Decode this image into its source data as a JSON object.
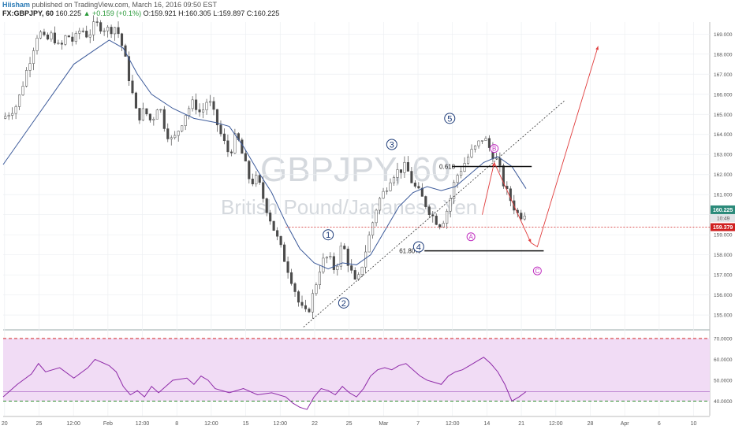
{
  "header": {
    "author": "Hiisham",
    "published": "published on TradingView.com, March 16, 2016 09:50 EST",
    "symbol": "FX:GBPJPY, 60",
    "last": "160.225",
    "change": "▲ +0.159 (+0.1%)",
    "open": "O:159.921",
    "high": "H:160.305",
    "low": "L:159.897",
    "close": "C:160.225"
  },
  "watermark": {
    "symbol": "GBPJPY, 60",
    "name": "British Pound/Japanese Yen"
  },
  "colors": {
    "candle": "#4a4a4a",
    "ma": "#3c5a9a",
    "projection": "#e03c3c",
    "trendline": "#333333",
    "wave": "#1f3d7a",
    "abc": "#c030c0",
    "rsi_line": "#8e2aa8",
    "rsi_band": "#f1dcf5",
    "rsi_upper": "#d02020",
    "rsi_lower": "#2a8a2a",
    "price_tag": "#2b8a7a",
    "level_tag": "#d02020"
  },
  "chart_data": {
    "type": "candlestick",
    "y_axis": {
      "ticks": [
        "169.000",
        "168.000",
        "167.000",
        "166.000",
        "165.000",
        "164.000",
        "163.000",
        "162.000",
        "161.000",
        "160.000",
        "159.000",
        "158.000",
        "157.000",
        "156.000",
        "155.000"
      ],
      "range": [
        154.3,
        169.6
      ]
    },
    "x_axis": {
      "ticks": [
        "20",
        "25",
        "12:00",
        "Feb",
        "12:00",
        "8",
        "12:00",
        "15",
        "12:00",
        "22",
        "25",
        "Mar",
        "7",
        "12:00",
        "14",
        "21",
        "12:00",
        "28",
        "Apr",
        "6",
        "10"
      ],
      "range": [
        0,
        100
      ]
    },
    "price_path": [
      [
        0,
        164.8
      ],
      [
        2,
        165.5
      ],
      [
        3,
        166.8
      ],
      [
        4,
        168.0
      ],
      [
        5,
        169.2
      ],
      [
        6,
        168.6
      ],
      [
        7,
        169.0
      ],
      [
        8,
        168.2
      ],
      [
        9,
        169.0
      ],
      [
        10,
        168.6
      ],
      [
        11,
        169.3
      ],
      [
        12,
        168.9
      ],
      [
        13,
        169.5
      ],
      [
        15,
        169.2
      ],
      [
        16,
        169.4
      ],
      [
        17,
        168.2
      ],
      [
        18,
        166.5
      ],
      [
        19,
        164.8
      ],
      [
        20,
        165.2
      ],
      [
        21,
        164.6
      ],
      [
        22,
        165.6
      ],
      [
        23,
        164.2
      ],
      [
        24,
        163.6
      ],
      [
        25,
        164.4
      ],
      [
        26,
        165.2
      ],
      [
        27,
        165.6
      ],
      [
        28,
        165.0
      ],
      [
        29,
        165.8
      ],
      [
        30,
        164.8
      ],
      [
        31,
        163.8
      ],
      [
        32,
        163.0
      ],
      [
        33,
        164.0
      ],
      [
        34,
        162.8
      ],
      [
        35,
        161.6
      ],
      [
        36,
        161.8
      ],
      [
        37,
        160.6
      ],
      [
        38,
        159.6
      ],
      [
        39,
        158.6
      ],
      [
        40,
        157.6
      ],
      [
        41,
        156.6
      ],
      [
        42,
        155.4
      ],
      [
        43,
        155.0
      ],
      [
        44,
        156.2
      ],
      [
        45,
        157.6
      ],
      [
        46,
        157.9
      ],
      [
        47,
        157.2
      ],
      [
        48,
        158.6
      ],
      [
        49,
        157.4
      ],
      [
        50,
        156.4
      ],
      [
        51,
        157.8
      ],
      [
        52,
        159.2
      ],
      [
        53,
        160.6
      ],
      [
        54,
        161.2
      ],
      [
        55,
        162.0
      ],
      [
        56,
        162.2
      ],
      [
        57,
        162.4
      ],
      [
        58,
        161.5
      ],
      [
        59,
        161.0
      ],
      [
        60,
        160.4
      ],
      [
        61,
        159.8
      ],
      [
        62,
        159.5
      ],
      [
        63,
        160.4
      ],
      [
        64,
        161.8
      ],
      [
        65,
        162.4
      ],
      [
        66,
        163.0
      ],
      [
        67,
        163.4
      ],
      [
        68,
        163.9
      ],
      [
        69,
        163.2
      ],
      [
        70,
        162.6
      ],
      [
        71,
        161.3
      ],
      [
        72,
        160.6
      ],
      [
        73,
        159.9
      ],
      [
        74,
        160.2
      ]
    ],
    "moving_average": [
      [
        0,
        162.5
      ],
      [
        5,
        165.0
      ],
      [
        10,
        167.5
      ],
      [
        15,
        168.7
      ],
      [
        17,
        168.3
      ],
      [
        19,
        167.0
      ],
      [
        21,
        166.0
      ],
      [
        24,
        165.3
      ],
      [
        27,
        164.8
      ],
      [
        30,
        164.6
      ],
      [
        32,
        164.4
      ],
      [
        34,
        163.4
      ],
      [
        36,
        162.2
      ],
      [
        38,
        161.1
      ],
      [
        40,
        159.6
      ],
      [
        42,
        158.3
      ],
      [
        44,
        157.6
      ],
      [
        46,
        157.3
      ],
      [
        48,
        157.6
      ],
      [
        50,
        157.5
      ],
      [
        52,
        158.0
      ],
      [
        54,
        159.2
      ],
      [
        56,
        160.4
      ],
      [
        58,
        161.1
      ],
      [
        60,
        161.4
      ],
      [
        62,
        161.2
      ],
      [
        64,
        161.4
      ],
      [
        66,
        162.0
      ],
      [
        68,
        162.6
      ],
      [
        70,
        162.9
      ],
      [
        72,
        162.4
      ],
      [
        74,
        161.3
      ]
    ],
    "rsi": {
      "levels": [
        "70.0000",
        "60.0000",
        "50.0000",
        "40.0000"
      ],
      "range": [
        33,
        73
      ],
      "upper": 70,
      "lower": 40,
      "mid": 44.5,
      "path": [
        [
          0,
          42
        ],
        [
          2,
          48
        ],
        [
          4,
          53
        ],
        [
          5,
          58
        ],
        [
          6,
          54
        ],
        [
          8,
          56
        ],
        [
          10,
          51
        ],
        [
          12,
          56
        ],
        [
          13,
          60
        ],
        [
          15,
          57
        ],
        [
          16,
          54
        ],
        [
          17,
          47
        ],
        [
          18,
          43
        ],
        [
          19,
          45
        ],
        [
          20,
          42
        ],
        [
          21,
          47
        ],
        [
          22,
          44
        ],
        [
          24,
          50
        ],
        [
          26,
          51
        ],
        [
          27,
          48
        ],
        [
          28,
          52
        ],
        [
          29,
          50
        ],
        [
          30,
          46
        ],
        [
          32,
          44
        ],
        [
          34,
          46
        ],
        [
          36,
          43
        ],
        [
          38,
          44
        ],
        [
          40,
          42
        ],
        [
          41,
          39
        ],
        [
          42,
          37
        ],
        [
          43,
          36
        ],
        [
          44,
          42
        ],
        [
          45,
          46
        ],
        [
          46,
          45
        ],
        [
          47,
          43
        ],
        [
          48,
          47
        ],
        [
          49,
          44
        ],
        [
          50,
          42
        ],
        [
          51,
          46
        ],
        [
          52,
          52
        ],
        [
          53,
          55
        ],
        [
          54,
          56
        ],
        [
          55,
          55
        ],
        [
          56,
          57
        ],
        [
          57,
          58
        ],
        [
          58,
          55
        ],
        [
          59,
          52
        ],
        [
          60,
          50
        ],
        [
          61,
          49
        ],
        [
          62,
          48
        ],
        [
          63,
          52
        ],
        [
          64,
          54
        ],
        [
          65,
          55
        ],
        [
          66,
          57
        ],
        [
          67,
          59
        ],
        [
          68,
          61
        ],
        [
          69,
          58
        ],
        [
          70,
          54
        ],
        [
          71,
          48
        ],
        [
          72,
          40
        ],
        [
          73,
          42
        ],
        [
          74,
          44.5
        ]
      ]
    },
    "annotations": {
      "waves": [
        {
          "label": "1",
          "x": 46,
          "y": 159.0
        },
        {
          "label": "2",
          "x": 48.2,
          "y": 155.6
        },
        {
          "label": "3",
          "x": 55,
          "y": 163.5
        },
        {
          "label": "4",
          "x": 58.8,
          "y": 158.4
        },
        {
          "label": "5",
          "x": 63.2,
          "y": 164.8
        }
      ],
      "abc": [
        {
          "label": "A",
          "x": 66.2,
          "y": 158.9
        },
        {
          "label": "B",
          "x": 69.5,
          "y": 163.3
        },
        {
          "label": "C",
          "x": 75.6,
          "y": 157.2
        }
      ],
      "fib_618": {
        "label": "0.618",
        "x": 61.5,
        "x_end": 74.8,
        "y": 162.4
      },
      "fib_6180": {
        "label": "61.80%",
        "x": 56.5,
        "x_end": 76.5,
        "y": 158.2
      },
      "trendline": {
        "from": [
          42.5,
          154.4
        ],
        "to": [
          79.5,
          165.7
        ]
      },
      "hline": {
        "y": 159.379,
        "x": 40
      },
      "projection": [
        [
          67.8,
          160.0
        ],
        [
          69.5,
          162.6
        ],
        [
          74.7,
          158.6
        ],
        [
          75.6,
          158.4
        ],
        [
          84.2,
          168.4
        ]
      ]
    },
    "price_tags": {
      "last": "160.225",
      "level": "159.379",
      "countdown": "10:49"
    }
  }
}
